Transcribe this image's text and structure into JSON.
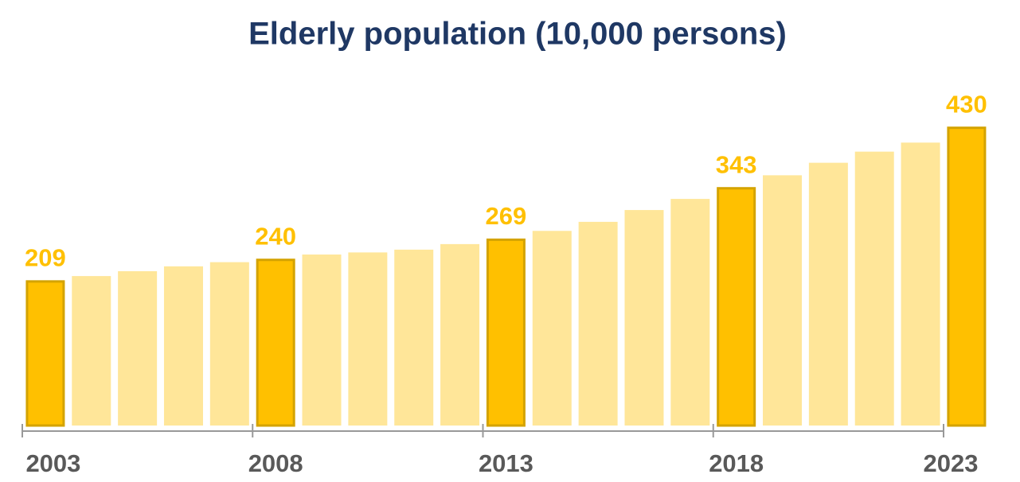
{
  "chart_data": {
    "type": "bar",
    "title": "Elderly population (10,000 persons)",
    "categories": [
      "2003",
      null,
      null,
      null,
      null,
      "2008",
      null,
      null,
      null,
      null,
      "2013",
      null,
      null,
      null,
      null,
      "2018",
      null,
      null,
      null,
      null,
      "2023"
    ],
    "values": [
      209,
      215,
      222,
      229,
      235,
      240,
      246,
      249,
      253,
      261,
      269,
      280,
      293,
      310,
      326,
      343,
      360,
      378,
      394,
      407,
      430
    ],
    "color": "#ffe699",
    "highlight_color": "#ffc000",
    "highlight_edge_color": "#d4a300",
    "ylim": [
      0,
      500
    ],
    "grid": false
  }
}
